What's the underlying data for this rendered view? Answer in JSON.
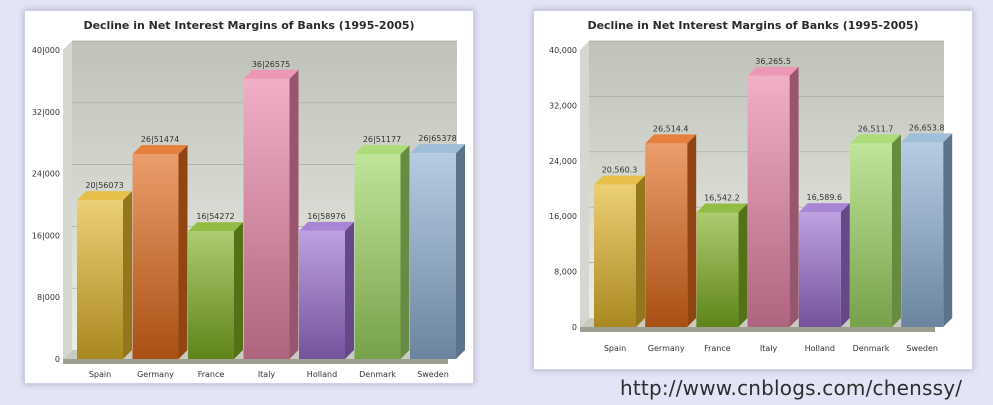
{
  "watermark": "http://www.cnblogs.com/chenssy/",
  "chart_data": [
    {
      "type": "bar",
      "title": "Decline in Net Interest Margins of Banks (1995-2005)",
      "categories": [
        "Spain",
        "Germany",
        "France",
        "Italy",
        "Holland",
        "Denmark",
        "Sweden"
      ],
      "values": [
        20560.73,
        26514.74,
        16542.72,
        36265.75,
        16589.76,
        26511.77,
        26653.78
      ],
      "value_labels": [
        "20|56073",
        "26|51474",
        "16|54272",
        "36|26575",
        "16|58976",
        "26|51177",
        "26|65378"
      ],
      "ylim": [
        0,
        40000
      ],
      "y_tick_values": [
        0,
        8000,
        16000,
        24000,
        32000,
        40000
      ],
      "y_tick_labels": [
        "0",
        "8|000",
        "16|000",
        "24|000",
        "32|000",
        "40|000"
      ],
      "colors": [
        "#e3b52b",
        "#e06a1b",
        "#7fb022",
        "#e985a8",
        "#9a6fcf",
        "#9ed663",
        "#8fb1d4"
      ],
      "grid": true
    },
    {
      "type": "bar",
      "title": "Decline in Net Interest Margins of Banks (1995-2005)",
      "categories": [
        "Spain",
        "Germany",
        "France",
        "Italy",
        "Holland",
        "Denmark",
        "Sweden"
      ],
      "values": [
        20560.3,
        26514.4,
        16542.2,
        36265.5,
        16589.6,
        26511.7,
        26653.8
      ],
      "value_labels": [
        "20,560.3",
        "26,514.4",
        "16,542.2",
        "36,265.5",
        "16,589.6",
        "26,511.7",
        "26,653.8"
      ],
      "ylim": [
        0,
        40000
      ],
      "y_tick_values": [
        0,
        8000,
        16000,
        24000,
        32000,
        40000
      ],
      "y_tick_labels": [
        "0",
        "8,000",
        "16,000",
        "24,000",
        "32,000",
        "40,000"
      ],
      "colors": [
        "#e3b52b",
        "#e06a1b",
        "#7fb022",
        "#e985a8",
        "#9a6fcf",
        "#9ed663",
        "#8fb1d4"
      ],
      "grid": true
    }
  ]
}
